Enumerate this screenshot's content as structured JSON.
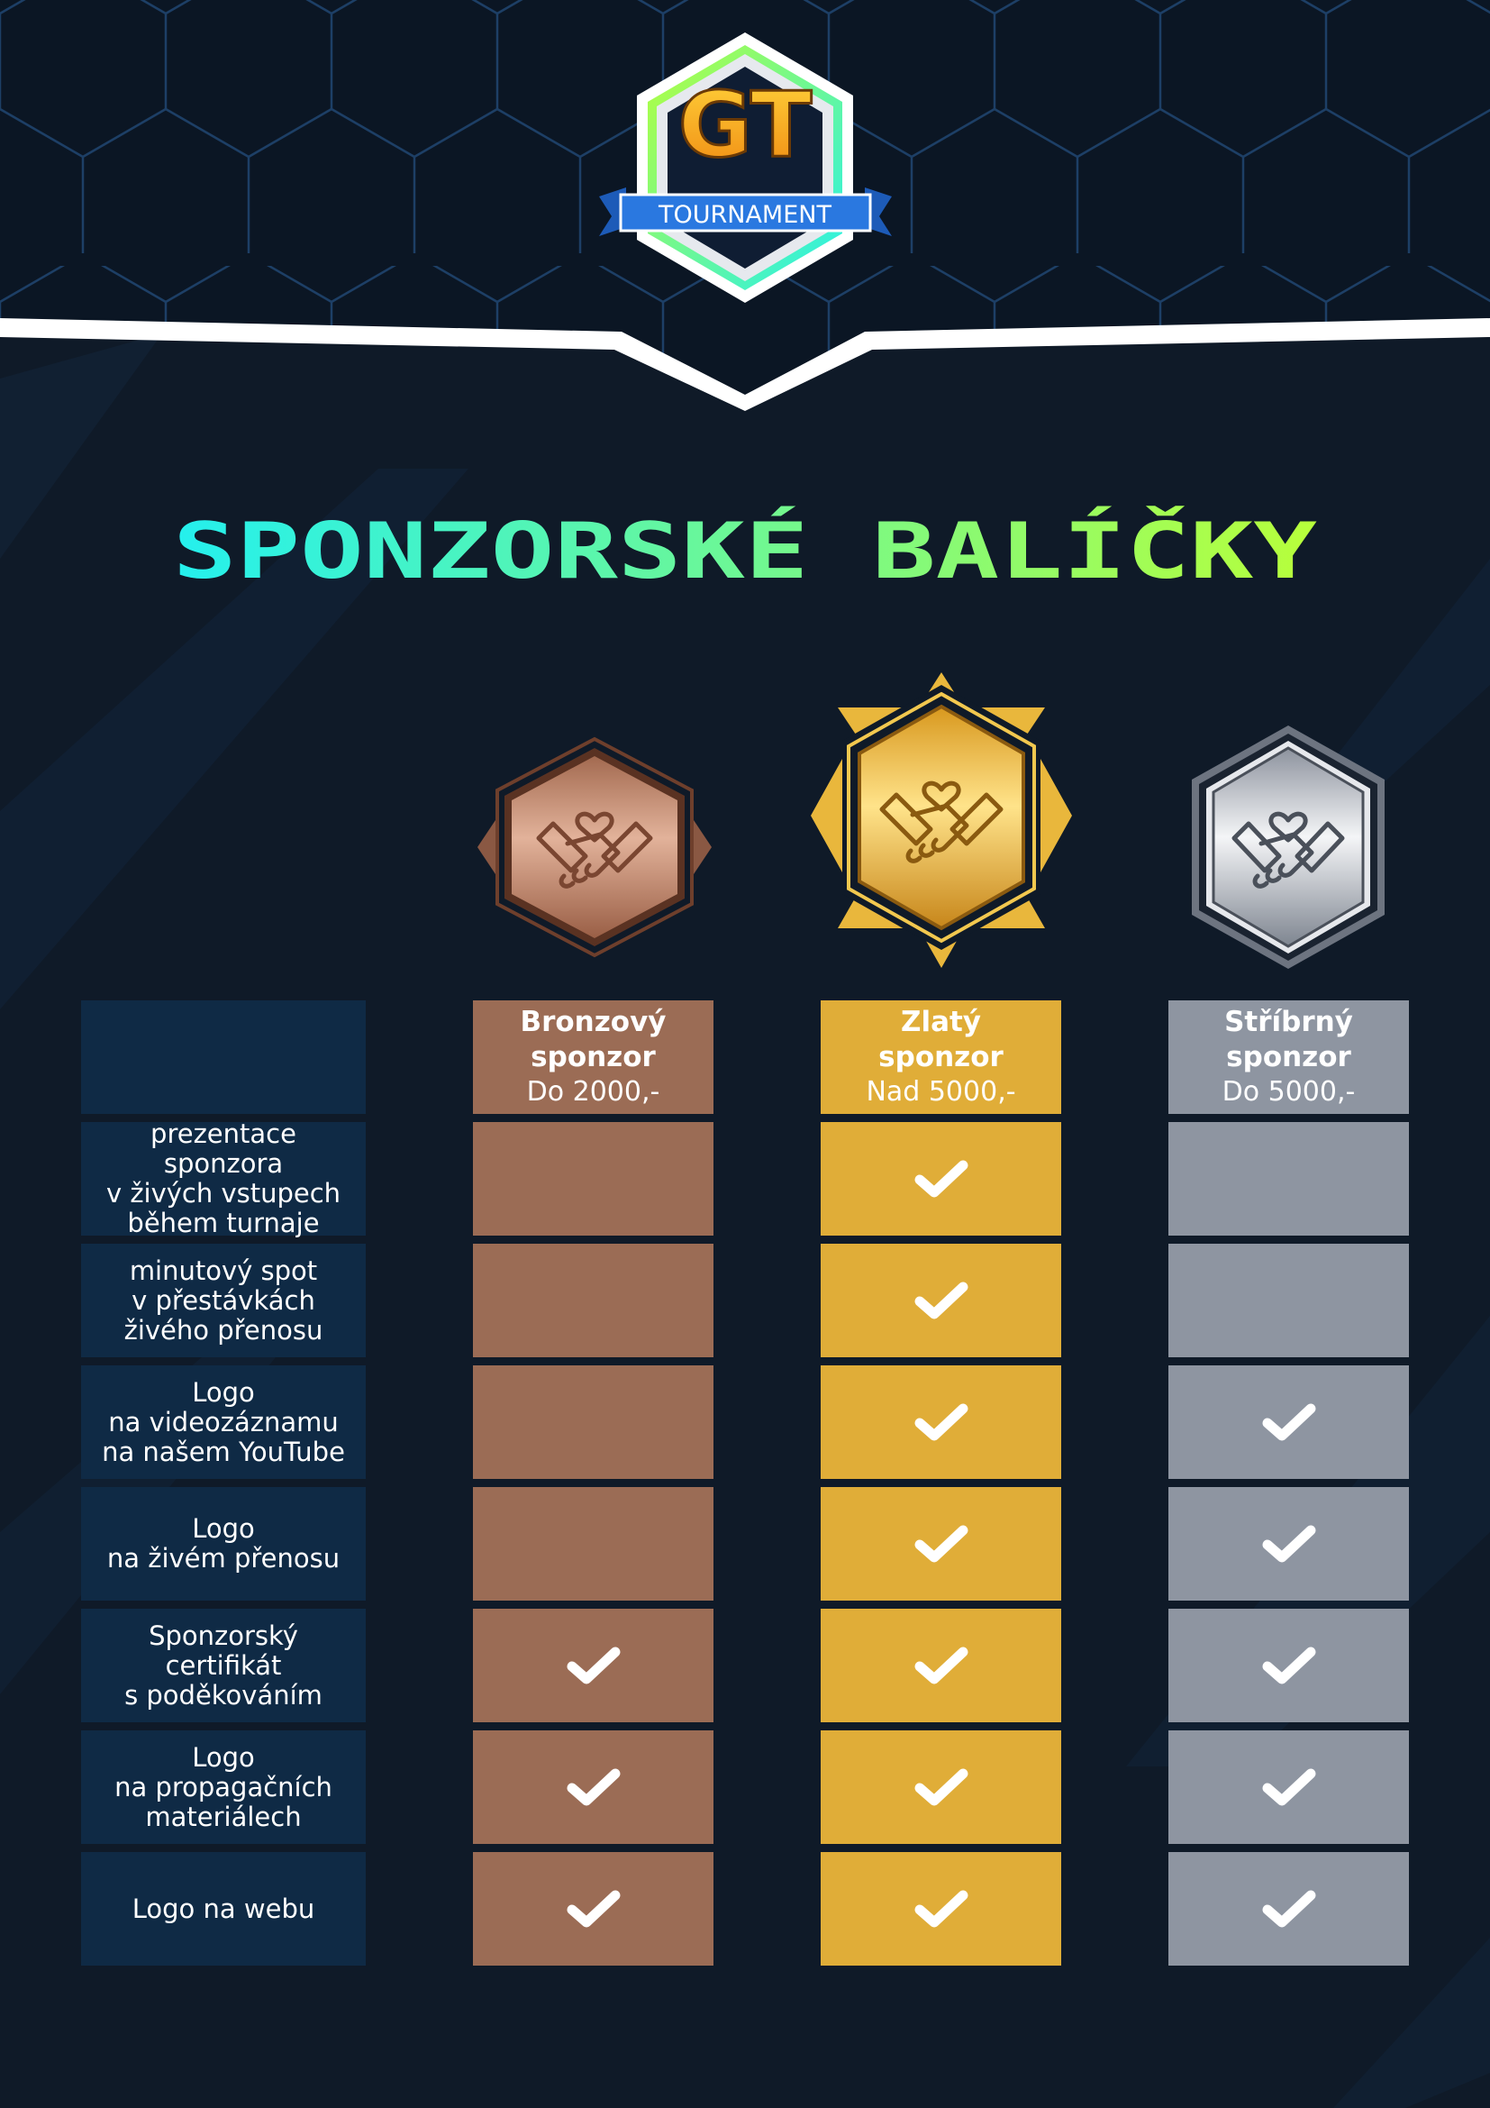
{
  "logo": {
    "letters": "GT",
    "label": "TOURNAMENT"
  },
  "title": "SPONZORSKÉ BALÍČKY",
  "colors": {
    "background": "#0f1a28",
    "header_background": "#0b1624",
    "feature_cell": "#0f2a45",
    "bronze": "#9b6c55",
    "gold": "#e0ad38",
    "silver": "#8e95a1",
    "title_gradient": [
      "#24f0ee",
      "#b8ff3a"
    ]
  },
  "tiers": [
    {
      "key": "bronze",
      "name_line1": "Bronzový",
      "name_line2": "sponzor",
      "price": "Do 2000,-",
      "icon": "handshake-heart-icon"
    },
    {
      "key": "gold",
      "name_line1": "Zlatý",
      "name_line2": "sponzor",
      "price": "Nad 5000,-",
      "icon": "handshake-heart-icon"
    },
    {
      "key": "silver",
      "name_line1": "Stříbrný",
      "name_line2": "sponzor",
      "price": "Do 5000,-",
      "icon": "handshake-heart-icon"
    }
  ],
  "features": [
    {
      "label": "prezentace sponzora\nv živých vstupech\nběhem turnaje",
      "bronze": false,
      "gold": true,
      "silver": false
    },
    {
      "label": "minutový spot\nv přestávkách\nživého přenosu",
      "bronze": false,
      "gold": true,
      "silver": false
    },
    {
      "label": "Logo\nna videozáznamu\nna našem YouTube",
      "bronze": false,
      "gold": true,
      "silver": true
    },
    {
      "label": "Logo\nna živém přenosu",
      "bronze": false,
      "gold": true,
      "silver": true
    },
    {
      "label": "Sponzorský certifikát\ns poděkováním",
      "bronze": true,
      "gold": true,
      "silver": true
    },
    {
      "label": "Logo\nna propagačních\nmateriálech",
      "bronze": true,
      "gold": true,
      "silver": true
    },
    {
      "label": "Logo na webu",
      "bronze": true,
      "gold": true,
      "silver": true
    }
  ]
}
